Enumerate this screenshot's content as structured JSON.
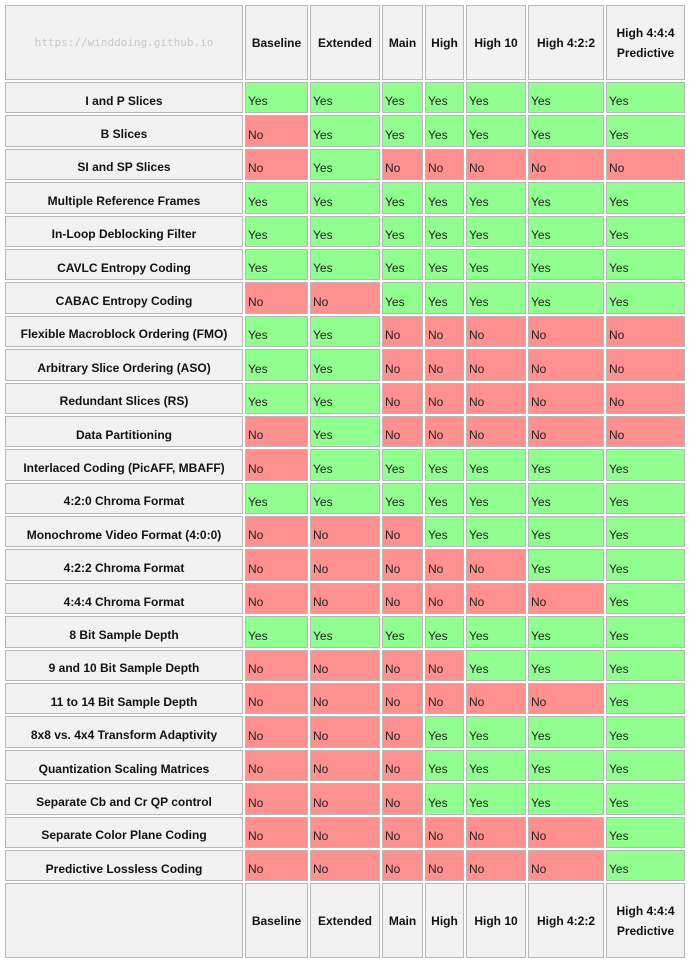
{
  "columns": [
    "Baseline",
    "Extended",
    "Main",
    "High",
    "High 10",
    "High 4:2:2",
    "High 4:4:4 Predictive"
  ],
  "yes_label": "Yes",
  "no_label": "No",
  "colors": {
    "yes": "#90ff90",
    "no": "#ff9090",
    "header": "#f2f2f2"
  },
  "rows": [
    {
      "feature": "I and P Slices",
      "values": [
        "Yes",
        "Yes",
        "Yes",
        "Yes",
        "Yes",
        "Yes",
        "Yes"
      ]
    },
    {
      "feature": "B Slices",
      "values": [
        "No",
        "Yes",
        "Yes",
        "Yes",
        "Yes",
        "Yes",
        "Yes"
      ]
    },
    {
      "feature": "SI and SP Slices",
      "values": [
        "No",
        "Yes",
        "No",
        "No",
        "No",
        "No",
        "No"
      ]
    },
    {
      "feature": "Multiple Reference Frames",
      "values": [
        "Yes",
        "Yes",
        "Yes",
        "Yes",
        "Yes",
        "Yes",
        "Yes"
      ]
    },
    {
      "feature": "In-Loop Deblocking Filter",
      "values": [
        "Yes",
        "Yes",
        "Yes",
        "Yes",
        "Yes",
        "Yes",
        "Yes"
      ]
    },
    {
      "feature": "CAVLC Entropy Coding",
      "values": [
        "Yes",
        "Yes",
        "Yes",
        "Yes",
        "Yes",
        "Yes",
        "Yes"
      ]
    },
    {
      "feature": "CABAC Entropy Coding",
      "values": [
        "No",
        "No",
        "Yes",
        "Yes",
        "Yes",
        "Yes",
        "Yes"
      ]
    },
    {
      "feature": "Flexible Macroblock Ordering (FMO)",
      "values": [
        "Yes",
        "Yes",
        "No",
        "No",
        "No",
        "No",
        "No"
      ]
    },
    {
      "feature": "Arbitrary Slice Ordering (ASO)",
      "values": [
        "Yes",
        "Yes",
        "No",
        "No",
        "No",
        "No",
        "No"
      ]
    },
    {
      "feature": "Redundant Slices (RS)",
      "values": [
        "Yes",
        "Yes",
        "No",
        "No",
        "No",
        "No",
        "No"
      ]
    },
    {
      "feature": "Data Partitioning",
      "values": [
        "No",
        "Yes",
        "No",
        "No",
        "No",
        "No",
        "No"
      ]
    },
    {
      "feature": "Interlaced Coding (PicAFF, MBAFF)",
      "values": [
        "No",
        "Yes",
        "Yes",
        "Yes",
        "Yes",
        "Yes",
        "Yes"
      ]
    },
    {
      "feature": "4:2:0 Chroma Format",
      "values": [
        "Yes",
        "Yes",
        "Yes",
        "Yes",
        "Yes",
        "Yes",
        "Yes"
      ]
    },
    {
      "feature": "Monochrome Video Format (4:0:0)",
      "values": [
        "No",
        "No",
        "No",
        "Yes",
        "Yes",
        "Yes",
        "Yes"
      ]
    },
    {
      "feature": "4:2:2 Chroma Format",
      "values": [
        "No",
        "No",
        "No",
        "No",
        "No",
        "Yes",
        "Yes"
      ]
    },
    {
      "feature": "4:4:4 Chroma Format",
      "values": [
        "No",
        "No",
        "No",
        "No",
        "No",
        "No",
        "Yes"
      ]
    },
    {
      "feature": "8 Bit Sample Depth",
      "values": [
        "Yes",
        "Yes",
        "Yes",
        "Yes",
        "Yes",
        "Yes",
        "Yes"
      ]
    },
    {
      "feature": "9 and 10 Bit Sample Depth",
      "values": [
        "No",
        "No",
        "No",
        "No",
        "Yes",
        "Yes",
        "Yes"
      ]
    },
    {
      "feature": "11 to 14 Bit Sample Depth",
      "values": [
        "No",
        "No",
        "No",
        "No",
        "No",
        "No",
        "Yes"
      ]
    },
    {
      "feature": "8x8 vs. 4x4 Transform Adaptivity",
      "values": [
        "No",
        "No",
        "No",
        "Yes",
        "Yes",
        "Yes",
        "Yes"
      ]
    },
    {
      "feature": "Quantization Scaling Matrices",
      "values": [
        "No",
        "No",
        "No",
        "Yes",
        "Yes",
        "Yes",
        "Yes"
      ]
    },
    {
      "feature": "Separate Cb and Cr QP control",
      "values": [
        "No",
        "No",
        "No",
        "Yes",
        "Yes",
        "Yes",
        "Yes"
      ]
    },
    {
      "feature": "Separate Color Plane Coding",
      "values": [
        "No",
        "No",
        "No",
        "No",
        "No",
        "No",
        "Yes"
      ]
    },
    {
      "feature": "Predictive Lossless Coding",
      "values": [
        "No",
        "No",
        "No",
        "No",
        "No",
        "No",
        "Yes"
      ]
    }
  ],
  "watermark": "https://winddoing.github.io"
}
